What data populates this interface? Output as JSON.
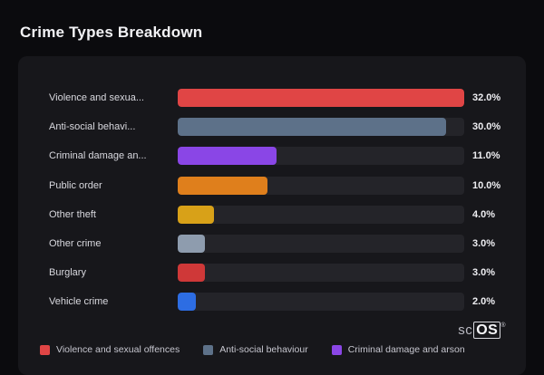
{
  "page": {
    "title": "Crime Types Breakdown"
  },
  "chart_data": {
    "type": "bar",
    "orientation": "horizontal",
    "title": "Crime Types Breakdown",
    "categories": [
      "Violence and sexua...",
      "Anti-social behavi...",
      "Criminal damage an...",
      "Public order",
      "Other theft",
      "Other crime",
      "Burglary",
      "Vehicle crime"
    ],
    "values": [
      32.0,
      30.0,
      11.0,
      10.0,
      4.0,
      3.0,
      3.0,
      2.0
    ],
    "value_labels": [
      "32.0%",
      "30.0%",
      "11.0%",
      "10.0%",
      "4.0%",
      "3.0%",
      "3.0%",
      "2.0%"
    ],
    "bar_colors": [
      "#e04545",
      "#5d7189",
      "#8a46e6",
      "#df7f1c",
      "#d8a118",
      "#8e9cae",
      "#cf3838",
      "#2d6de3"
    ],
    "xlim": [
      0,
      32
    ],
    "grid": false,
    "legend_position": "bottom",
    "track_color": "#242429"
  },
  "legend": {
    "items": [
      {
        "label": "Violence and sexual offences",
        "color": "#e04545"
      },
      {
        "label": "Anti-social behaviour",
        "color": "#5d7189"
      },
      {
        "label": "Criminal damage and arson",
        "color": "#8a46e6"
      }
    ]
  },
  "branding": {
    "prefix": "sc",
    "box": "OS",
    "registered": "®"
  }
}
